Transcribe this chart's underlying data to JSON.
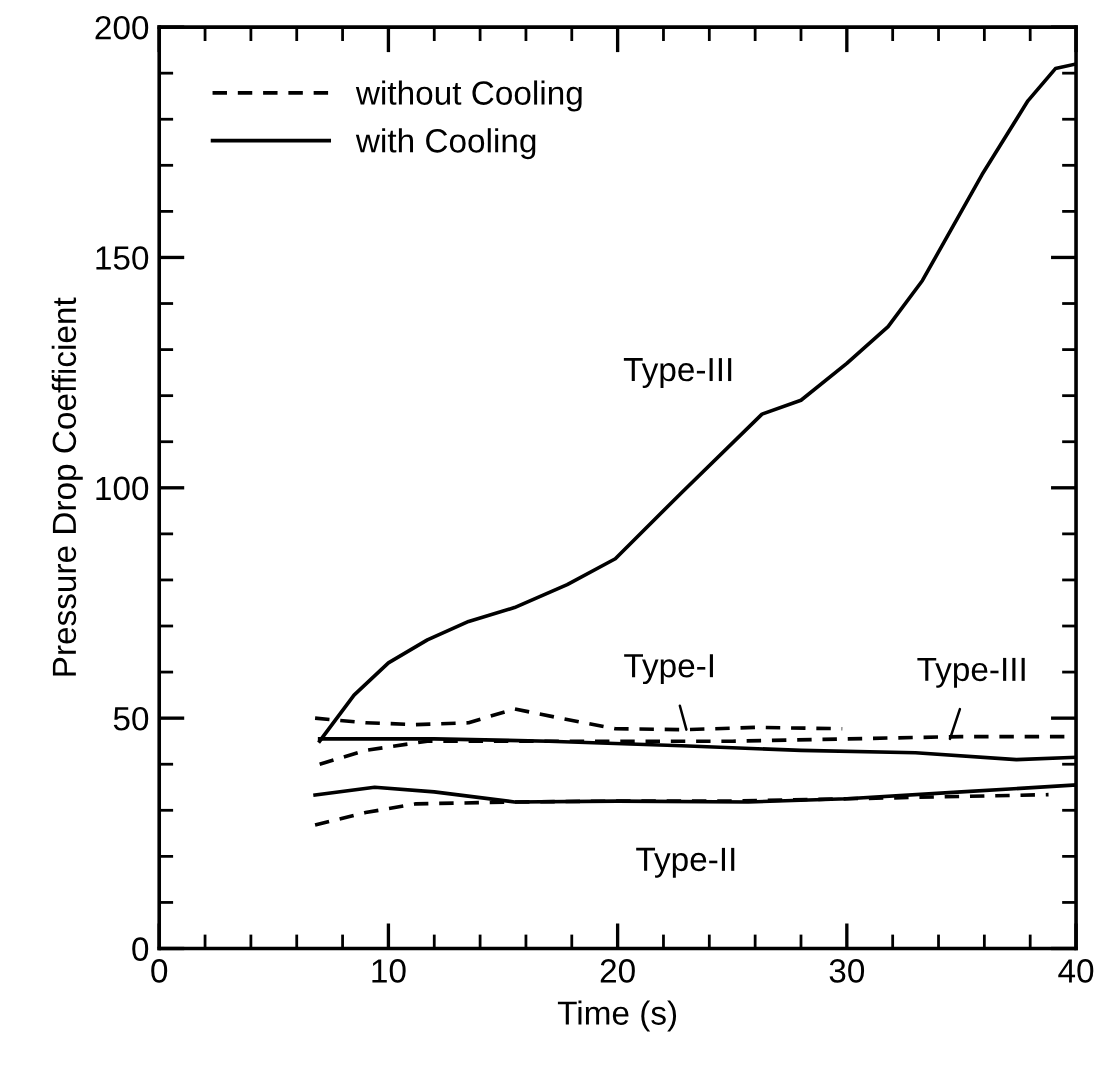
{
  "chart_data": {
    "type": "line",
    "xlabel": "Time (s)",
    "ylabel": "Pressure Drop Coefficient",
    "xlim": [
      0,
      40
    ],
    "ylim": [
      0,
      200
    ],
    "xticks": [
      0,
      10,
      20,
      30,
      40
    ],
    "yticks": [
      0,
      50,
      100,
      150,
      200
    ],
    "grid": false,
    "legend": "top left",
    "marker": "none",
    "series": [
      {
        "name": "without Cooling",
        "color": "#000000",
        "line_style": "dashed",
        "x": [
          6.8,
          9,
          11.2,
          13.5,
          15.5,
          17.5,
          19.9,
          23,
          26,
          29.8
        ],
        "values": [
          50,
          49,
          48.6,
          49,
          52,
          50,
          47.7,
          47.5,
          48,
          47.7
        ]
      },
      {
        "name": "with Cooling",
        "color": "#000000",
        "line_style": "solid",
        "x": [
          7,
          8.5,
          10,
          11.7,
          13.5,
          15.5,
          17.8,
          19.9,
          22.8,
          26.3,
          28,
          30,
          31.8,
          33.3,
          35.9,
          37.9,
          39.1,
          40
        ],
        "values": [
          45,
          55,
          62,
          67,
          71,
          74,
          79,
          84.6,
          99,
          116,
          119,
          127,
          135,
          145,
          168,
          184,
          191,
          192
        ]
      },
      {
        "color": "#000000",
        "line_style": "dashed",
        "x": [
          7,
          9,
          11.7,
          15,
          20,
          25,
          30,
          35,
          40
        ],
        "values": [
          40,
          43,
          45,
          45,
          45,
          45,
          45.5,
          46,
          46
        ]
      },
      {
        "color": "#000000",
        "line_style": "solid",
        "x": [
          7,
          12,
          17,
          22.8,
          28,
          33,
          37.4,
          40
        ],
        "values": [
          45.5,
          45.5,
          45,
          44,
          43,
          42.5,
          41,
          41.5
        ]
      },
      {
        "color": "#000000",
        "line_style": "solid",
        "x": [
          6.8,
          9.4,
          12,
          15.5,
          20,
          25.7,
          30,
          35,
          40
        ],
        "values": [
          33.3,
          35,
          34,
          31.8,
          32,
          31.8,
          32.5,
          34,
          35.5
        ]
      },
      {
        "color": "#000000",
        "line_style": "dashed",
        "x": [
          6.8,
          9,
          11.2,
          15.5,
          20,
          25,
          30,
          35,
          38.8
        ],
        "values": [
          26.8,
          29.5,
          31.4,
          31.8,
          32,
          32,
          32.5,
          33,
          33.4
        ]
      }
    ],
    "annotations": [
      {
        "text": "Type-III",
        "x": 26.3,
        "y": 116
      },
      {
        "text": "Type-I",
        "x": 23,
        "y": 47.5
      },
      {
        "text": "Type-III",
        "x": 34.5,
        "y": 45.5
      },
      {
        "text": "Type-II",
        "x": 23,
        "y": 32
      }
    ]
  }
}
